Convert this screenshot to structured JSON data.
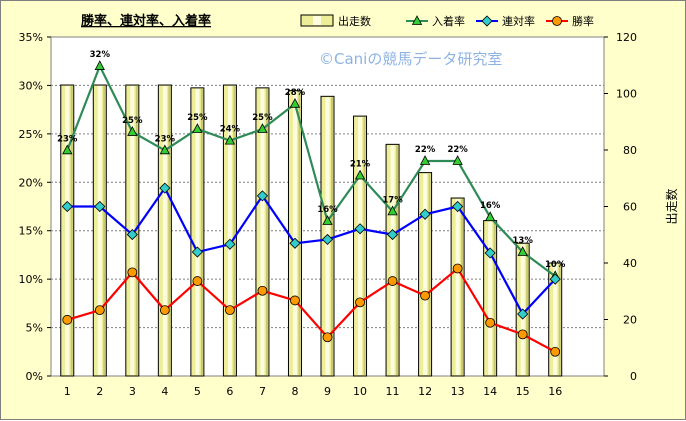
{
  "chart_data": {
    "type": "bar+line",
    "title": "勝率、連対率、入着率",
    "watermark": "©Caniの競馬データ研究室",
    "categories": [
      "1",
      "2",
      "3",
      "4",
      "5",
      "6",
      "7",
      "8",
      "9",
      "10",
      "11",
      "12",
      "13",
      "14",
      "15",
      "16"
    ],
    "y_left": {
      "min": 0,
      "max": 35,
      "step": 5,
      "tick_labels": [
        "0%",
        "5%",
        "10%",
        "15%",
        "20%",
        "25%",
        "30%",
        "35%"
      ]
    },
    "y_right": {
      "min": 0,
      "max": 120,
      "step": 20,
      "label": "出走数",
      "tick_labels": [
        "0",
        "20",
        "40",
        "60",
        "80",
        "100",
        "120"
      ]
    },
    "bars": {
      "name": "出走数",
      "color": "#eeee99",
      "axis": "right",
      "values": [
        103,
        103,
        103,
        103,
        102,
        103,
        102,
        101,
        99,
        92,
        82,
        72,
        63,
        55,
        47,
        40
      ]
    },
    "series": [
      {
        "name": "入着率",
        "color": "#2e8b57",
        "marker": "triangle",
        "marker_fill": "#33cc33",
        "values": [
          23.3,
          32.0,
          25.2,
          23.3,
          25.5,
          24.3,
          25.5,
          28.1,
          16.0,
          20.7,
          17.0,
          22.2,
          22.2,
          16.4,
          12.8,
          10.3
        ],
        "labels": [
          "23%",
          "32%",
          "25%",
          "23%",
          "25%",
          "24%",
          "25%",
          "28%",
          "16%",
          "21%",
          "17%",
          "22%",
          "22%",
          "16%",
          "13%",
          "10%"
        ]
      },
      {
        "name": "連対率",
        "color": "#0000ff",
        "marker": "diamond",
        "marker_fill": "#33cccc",
        "values": [
          17.5,
          17.5,
          14.6,
          19.4,
          12.8,
          13.6,
          18.6,
          13.7,
          14.1,
          15.2,
          14.6,
          16.7,
          17.5,
          12.7,
          6.4,
          10.0
        ]
      },
      {
        "name": "勝率",
        "color": "#ff0000",
        "marker": "circle",
        "marker_fill": "#ff9900",
        "values": [
          5.8,
          6.8,
          10.7,
          6.8,
          9.8,
          6.8,
          8.8,
          7.8,
          4.0,
          7.6,
          9.8,
          8.3,
          11.1,
          5.5,
          4.3,
          2.5
        ]
      }
    ],
    "legend": {
      "placement": "top",
      "items": [
        "出走数",
        "入着率",
        "連対率",
        "勝率"
      ]
    },
    "grid": true
  }
}
